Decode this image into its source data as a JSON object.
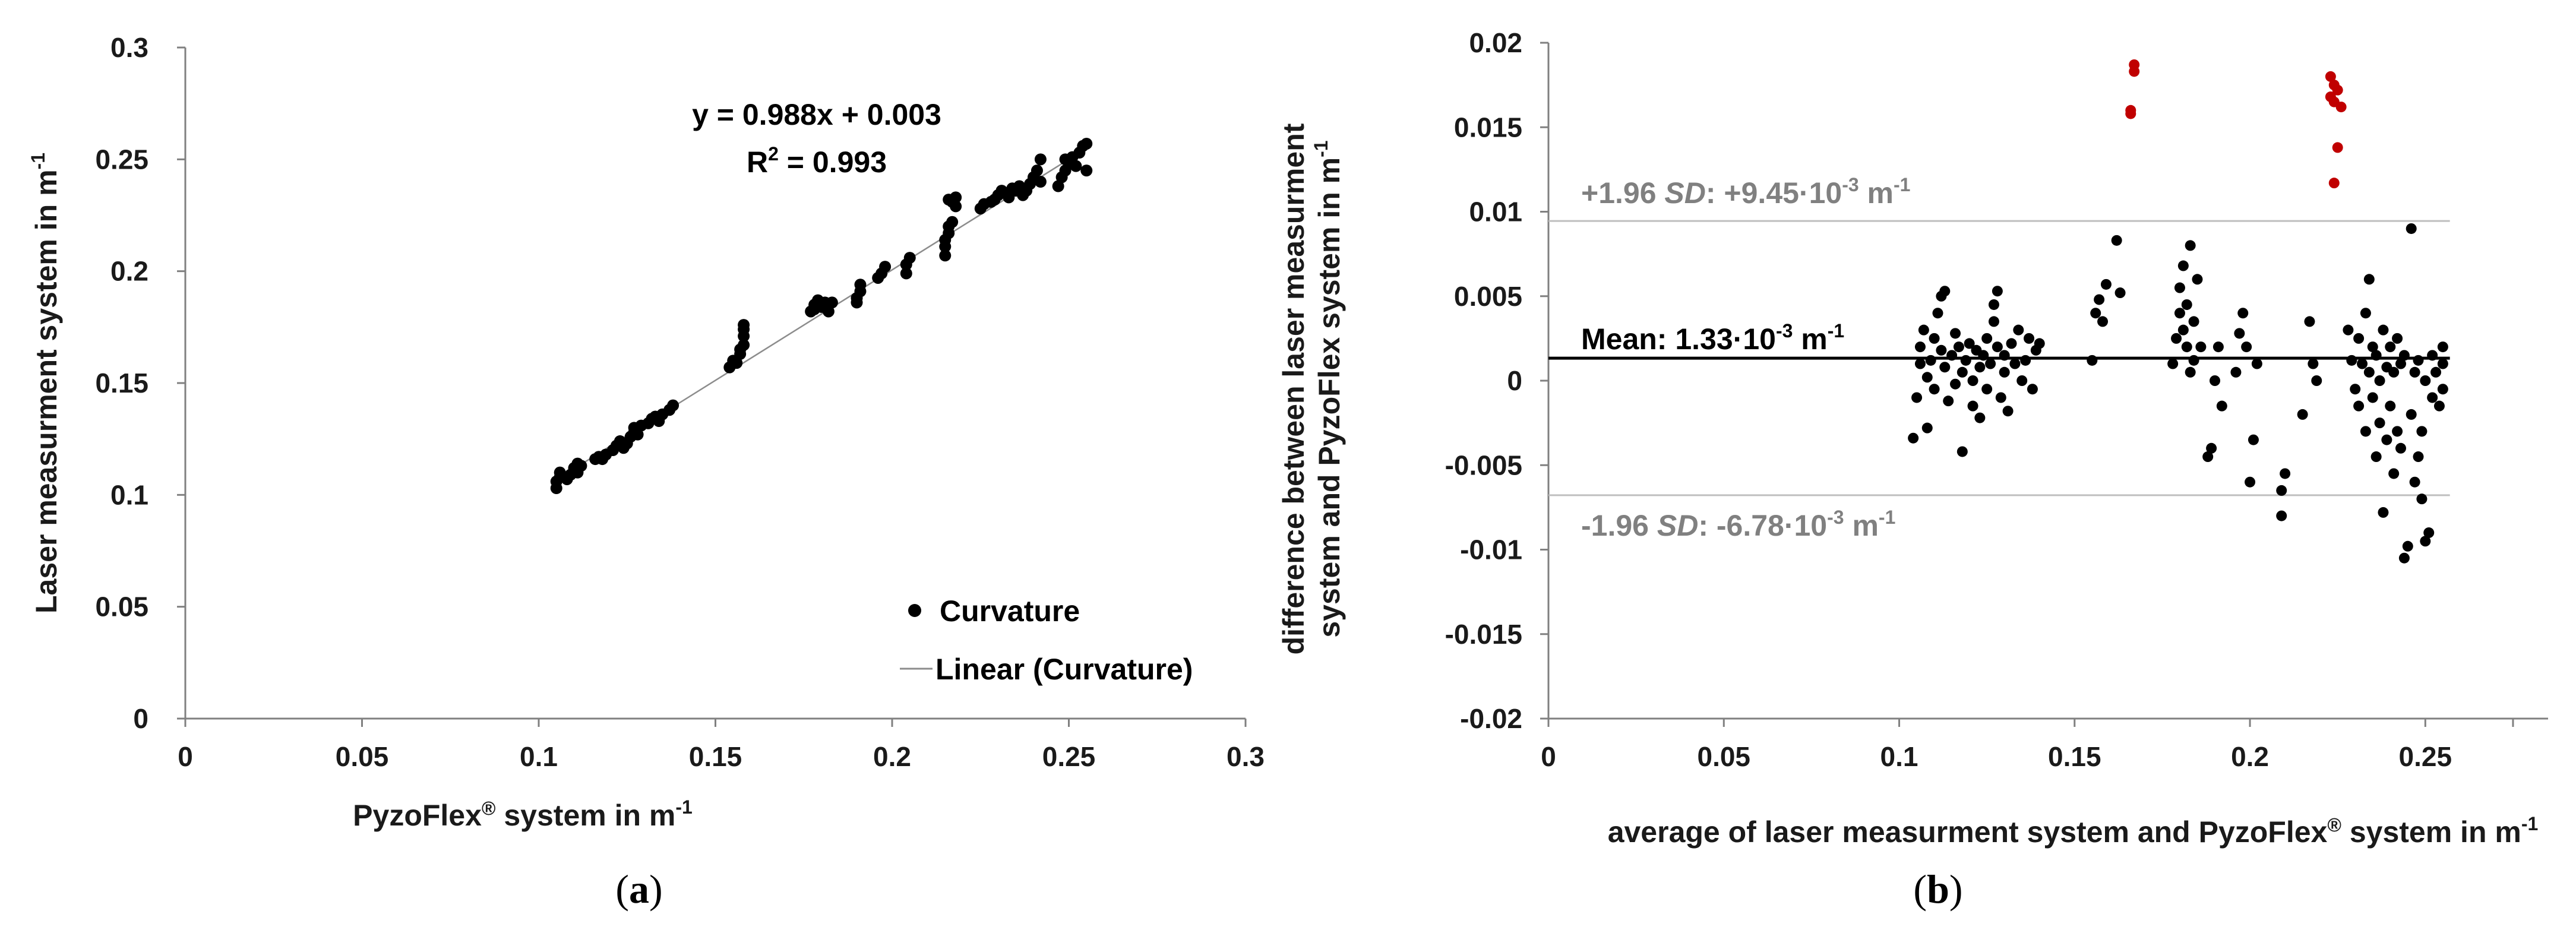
{
  "chart_data": [
    {
      "panel": "(a)",
      "type": "scatter",
      "xlabel": "PyzoFlex® system in m-1",
      "ylabel": "Laser measurment system in m-1",
      "xlim": [
        0,
        0.3
      ],
      "ylim": [
        0,
        0.3
      ],
      "xticks": [
        "0",
        "0.05",
        "0.1",
        "0.15",
        "0.2",
        "0.25",
        "0.3"
      ],
      "yticks": [
        "0",
        "0.05",
        "0.1",
        "0.15",
        "0.2",
        "0.25",
        "0.3"
      ],
      "equation": "y = 0.988x + 0.003",
      "r2": "R² = 0.993",
      "legend": {
        "position": "bottom-right",
        "items": [
          "Curvature",
          "Linear (Curvature)"
        ]
      },
      "trendline": {
        "slope": 0.988,
        "intercept": 0.003,
        "x_range": [
          0.105,
          0.255
        ]
      },
      "series": [
        {
          "name": "Curvature",
          "points": [
            [
              0.105,
              0.103
            ],
            [
              0.105,
              0.106
            ],
            [
              0.106,
              0.108
            ],
            [
              0.106,
              0.11
            ],
            [
              0.108,
              0.107
            ],
            [
              0.109,
              0.109
            ],
            [
              0.11,
              0.112
            ],
            [
              0.111,
              0.11
            ],
            [
              0.111,
              0.114
            ],
            [
              0.112,
              0.113
            ],
            [
              0.116,
              0.116
            ],
            [
              0.117,
              0.117
            ],
            [
              0.118,
              0.116
            ],
            [
              0.119,
              0.118
            ],
            [
              0.121,
              0.12
            ],
            [
              0.122,
              0.122
            ],
            [
              0.123,
              0.124
            ],
            [
              0.124,
              0.121
            ],
            [
              0.125,
              0.123
            ],
            [
              0.126,
              0.126
            ],
            [
              0.127,
              0.128
            ],
            [
              0.127,
              0.13
            ],
            [
              0.128,
              0.127
            ],
            [
              0.129,
              0.131
            ],
            [
              0.131,
              0.132
            ],
            [
              0.132,
              0.134
            ],
            [
              0.133,
              0.135
            ],
            [
              0.134,
              0.133
            ],
            [
              0.135,
              0.136
            ],
            [
              0.137,
              0.138
            ],
            [
              0.138,
              0.14
            ],
            [
              0.154,
              0.157
            ],
            [
              0.155,
              0.16
            ],
            [
              0.156,
              0.159
            ],
            [
              0.157,
              0.163
            ],
            [
              0.157,
              0.165
            ],
            [
              0.158,
              0.171
            ],
            [
              0.158,
              0.174
            ],
            [
              0.158,
              0.176
            ],
            [
              0.158,
              0.167
            ],
            [
              0.177,
              0.182
            ],
            [
              0.178,
              0.183
            ],
            [
              0.178,
              0.185
            ],
            [
              0.179,
              0.187
            ],
            [
              0.18,
              0.184
            ],
            [
              0.181,
              0.186
            ],
            [
              0.182,
              0.182
            ],
            [
              0.183,
              0.186
            ],
            [
              0.19,
              0.186
            ],
            [
              0.19,
              0.188
            ],
            [
              0.191,
              0.191
            ],
            [
              0.191,
              0.194
            ],
            [
              0.196,
              0.197
            ],
            [
              0.197,
              0.199
            ],
            [
              0.198,
              0.202
            ],
            [
              0.204,
              0.199
            ],
            [
              0.204,
              0.203
            ],
            [
              0.205,
              0.206
            ],
            [
              0.215,
              0.207
            ],
            [
              0.215,
              0.211
            ],
            [
              0.215,
              0.214
            ],
            [
              0.216,
              0.217
            ],
            [
              0.216,
              0.22
            ],
            [
              0.217,
              0.222
            ],
            [
              0.217,
              0.231
            ],
            [
              0.218,
              0.233
            ],
            [
              0.218,
              0.229
            ],
            [
              0.216,
              0.232
            ],
            [
              0.225,
              0.228
            ],
            [
              0.226,
              0.23
            ],
            [
              0.228,
              0.231
            ],
            [
              0.229,
              0.232
            ],
            [
              0.23,
              0.234
            ],
            [
              0.231,
              0.236
            ],
            [
              0.232,
              0.235
            ],
            [
              0.233,
              0.233
            ],
            [
              0.234,
              0.237
            ],
            [
              0.235,
              0.236
            ],
            [
              0.236,
              0.238
            ],
            [
              0.237,
              0.234
            ],
            [
              0.238,
              0.236
            ],
            [
              0.239,
              0.239
            ],
            [
              0.24,
              0.242
            ],
            [
              0.241,
              0.245
            ],
            [
              0.242,
              0.24
            ],
            [
              0.242,
              0.25
            ],
            [
              0.247,
              0.238
            ],
            [
              0.248,
              0.242
            ],
            [
              0.249,
              0.245
            ],
            [
              0.25,
              0.249
            ],
            [
              0.251,
              0.251
            ],
            [
              0.252,
              0.247
            ],
            [
              0.253,
              0.253
            ],
            [
              0.254,
              0.256
            ],
            [
              0.255,
              0.257
            ],
            [
              0.255,
              0.245
            ],
            [
              0.249,
              0.25
            ]
          ]
        }
      ]
    },
    {
      "panel": "(b)",
      "type": "scatter",
      "xlabel": "average of laser measurment system and PyzoFlex® system in m-1",
      "ylabel_line1": "difference between laser measurment",
      "ylabel_line2": "system and PyzoFlex system in m-1",
      "xlim": [
        0,
        0.285
      ],
      "ylim": [
        -0.02,
        0.02
      ],
      "xticks": [
        "0",
        "0.05",
        "0.1",
        "0.15",
        "0.2",
        "0.25"
      ],
      "yticks": [
        "-0.02",
        "-0.015",
        "-0.01",
        "-0.005",
        "0",
        "0.005",
        "0.01",
        "0.015",
        "0.02"
      ],
      "mean": {
        "value": 0.00133,
        "label": "Mean: 1.33·10-3 m-1"
      },
      "upper_loa": {
        "value": 0.00945,
        "label": "+1.96 SD: +9.45·10-3 m-1"
      },
      "lower_loa": {
        "value": -0.00678,
        "label": "-1.96 SD: -6.78·10-3 m-1"
      },
      "colors": {
        "normal": "#000000",
        "outlier": "#c00000",
        "loa_line": "#bfbfbf",
        "mean_line": "#000000",
        "loa_text": "#808080"
      },
      "series": [
        {
          "name": "within",
          "points": [
            [
              0.104,
              -0.0034
            ],
            [
              0.105,
              -0.001
            ],
            [
              0.106,
              0.001
            ],
            [
              0.106,
              0.002
            ],
            [
              0.107,
              0.003
            ],
            [
              0.108,
              0.0002
            ],
            [
              0.108,
              -0.0028
            ],
            [
              0.109,
              0.0012
            ],
            [
              0.11,
              0.0025
            ],
            [
              0.11,
              -0.0005
            ],
            [
              0.111,
              0.004
            ],
            [
              0.112,
              0.005
            ],
            [
              0.112,
              0.0018
            ],
            [
              0.113,
              0.0053
            ],
            [
              0.113,
              0.0008
            ],
            [
              0.114,
              -0.0012
            ],
            [
              0.115,
              0.0015
            ],
            [
              0.116,
              0.0028
            ],
            [
              0.116,
              -0.0002
            ],
            [
              0.117,
              0.002
            ],
            [
              0.118,
              -0.0042
            ],
            [
              0.118,
              0.0005
            ],
            [
              0.119,
              0.0012
            ],
            [
              0.12,
              0.0022
            ],
            [
              0.121,
              0.0
            ],
            [
              0.121,
              -0.0015
            ],
            [
              0.122,
              0.0018
            ],
            [
              0.123,
              0.0008
            ],
            [
              0.123,
              -0.0022
            ],
            [
              0.124,
              0.0015
            ],
            [
              0.125,
              0.0025
            ],
            [
              0.125,
              -0.0005
            ],
            [
              0.126,
              0.001
            ],
            [
              0.127,
              0.0035
            ],
            [
              0.127,
              0.0045
            ],
            [
              0.128,
              0.002
            ],
            [
              0.128,
              0.0053
            ],
            [
              0.129,
              -0.001
            ],
            [
              0.13,
              0.0005
            ],
            [
              0.13,
              0.0015
            ],
            [
              0.131,
              -0.0018
            ],
            [
              0.132,
              0.0022
            ],
            [
              0.133,
              0.001
            ],
            [
              0.134,
              0.003
            ],
            [
              0.135,
              0.0
            ],
            [
              0.136,
              0.0012
            ],
            [
              0.137,
              0.0025
            ],
            [
              0.138,
              -0.0005
            ],
            [
              0.139,
              0.0018
            ],
            [
              0.14,
              0.0022
            ],
            [
              0.155,
              0.0012
            ],
            [
              0.156,
              0.004
            ],
            [
              0.157,
              0.0048
            ],
            [
              0.158,
              0.0035
            ],
            [
              0.159,
              0.0057
            ],
            [
              0.162,
              0.0083
            ],
            [
              0.163,
              0.0052
            ],
            [
              0.178,
              0.001
            ],
            [
              0.179,
              0.0025
            ],
            [
              0.18,
              0.004
            ],
            [
              0.18,
              0.0055
            ],
            [
              0.181,
              0.0068
            ],
            [
              0.181,
              0.003
            ],
            [
              0.182,
              0.0045
            ],
            [
              0.182,
              0.002
            ],
            [
              0.183,
              0.008
            ],
            [
              0.183,
              0.0005
            ],
            [
              0.184,
              0.0035
            ],
            [
              0.184,
              0.0012
            ],
            [
              0.185,
              0.006
            ],
            [
              0.186,
              0.002
            ],
            [
              0.188,
              -0.0045
            ],
            [
              0.189,
              -0.004
            ],
            [
              0.19,
              0.0
            ],
            [
              0.191,
              0.002
            ],
            [
              0.192,
              -0.0015
            ],
            [
              0.196,
              0.0005
            ],
            [
              0.197,
              0.0028
            ],
            [
              0.198,
              0.004
            ],
            [
              0.199,
              0.002
            ],
            [
              0.2,
              -0.006
            ],
            [
              0.201,
              -0.0035
            ],
            [
              0.202,
              0.001
            ],
            [
              0.209,
              -0.008
            ],
            [
              0.209,
              -0.0065
            ],
            [
              0.21,
              -0.0055
            ],
            [
              0.215,
              -0.002
            ],
            [
              0.217,
              0.0035
            ],
            [
              0.218,
              0.001
            ],
            [
              0.219,
              0.0
            ],
            [
              0.228,
              0.003
            ],
            [
              0.229,
              0.0012
            ],
            [
              0.23,
              -0.0005
            ],
            [
              0.231,
              0.0025
            ],
            [
              0.231,
              -0.0015
            ],
            [
              0.232,
              0.001
            ],
            [
              0.233,
              0.004
            ],
            [
              0.233,
              -0.003
            ],
            [
              0.234,
              0.0005
            ],
            [
              0.234,
              0.006
            ],
            [
              0.235,
              -0.001
            ],
            [
              0.235,
              0.002
            ],
            [
              0.236,
              -0.0045
            ],
            [
              0.236,
              0.0015
            ],
            [
              0.237,
              0.0
            ],
            [
              0.237,
              -0.0025
            ],
            [
              0.238,
              0.003
            ],
            [
              0.238,
              -0.0078
            ],
            [
              0.239,
              0.0008
            ],
            [
              0.239,
              -0.0035
            ],
            [
              0.24,
              0.002
            ],
            [
              0.24,
              -0.0015
            ],
            [
              0.241,
              0.0005
            ],
            [
              0.241,
              -0.0055
            ],
            [
              0.242,
              0.0025
            ],
            [
              0.242,
              -0.003
            ],
            [
              0.243,
              0.001
            ],
            [
              0.243,
              -0.004
            ],
            [
              0.244,
              0.0015
            ],
            [
              0.244,
              -0.0105
            ],
            [
              0.245,
              -0.0098
            ],
            [
              0.246,
              0.009
            ],
            [
              0.246,
              -0.002
            ],
            [
              0.247,
              0.0005
            ],
            [
              0.247,
              -0.006
            ],
            [
              0.248,
              -0.0045
            ],
            [
              0.248,
              0.0012
            ],
            [
              0.249,
              -0.007
            ],
            [
              0.249,
              -0.003
            ],
            [
              0.25,
              0.0
            ],
            [
              0.25,
              -0.0095
            ],
            [
              0.251,
              -0.009
            ],
            [
              0.252,
              0.0015
            ],
            [
              0.252,
              -0.001
            ],
            [
              0.253,
              0.0005
            ],
            [
              0.254,
              -0.0015
            ],
            [
              0.255,
              0.001
            ],
            [
              0.255,
              0.002
            ],
            [
              0.255,
              -0.0005
            ]
          ]
        },
        {
          "name": "outliers",
          "points": [
            [
              0.166,
              0.0158
            ],
            [
              0.166,
              0.016
            ],
            [
              0.167,
              0.0183
            ],
            [
              0.167,
              0.0187
            ],
            [
              0.223,
              0.0168
            ],
            [
              0.223,
              0.018
            ],
            [
              0.224,
              0.0175
            ],
            [
              0.224,
              0.0165
            ],
            [
              0.224,
              0.0117
            ],
            [
              0.225,
              0.0172
            ],
            [
              0.225,
              0.0138
            ],
            [
              0.226,
              0.0162
            ]
          ]
        }
      ]
    }
  ],
  "panel_labels": {
    "a": "a",
    "b": "b"
  }
}
